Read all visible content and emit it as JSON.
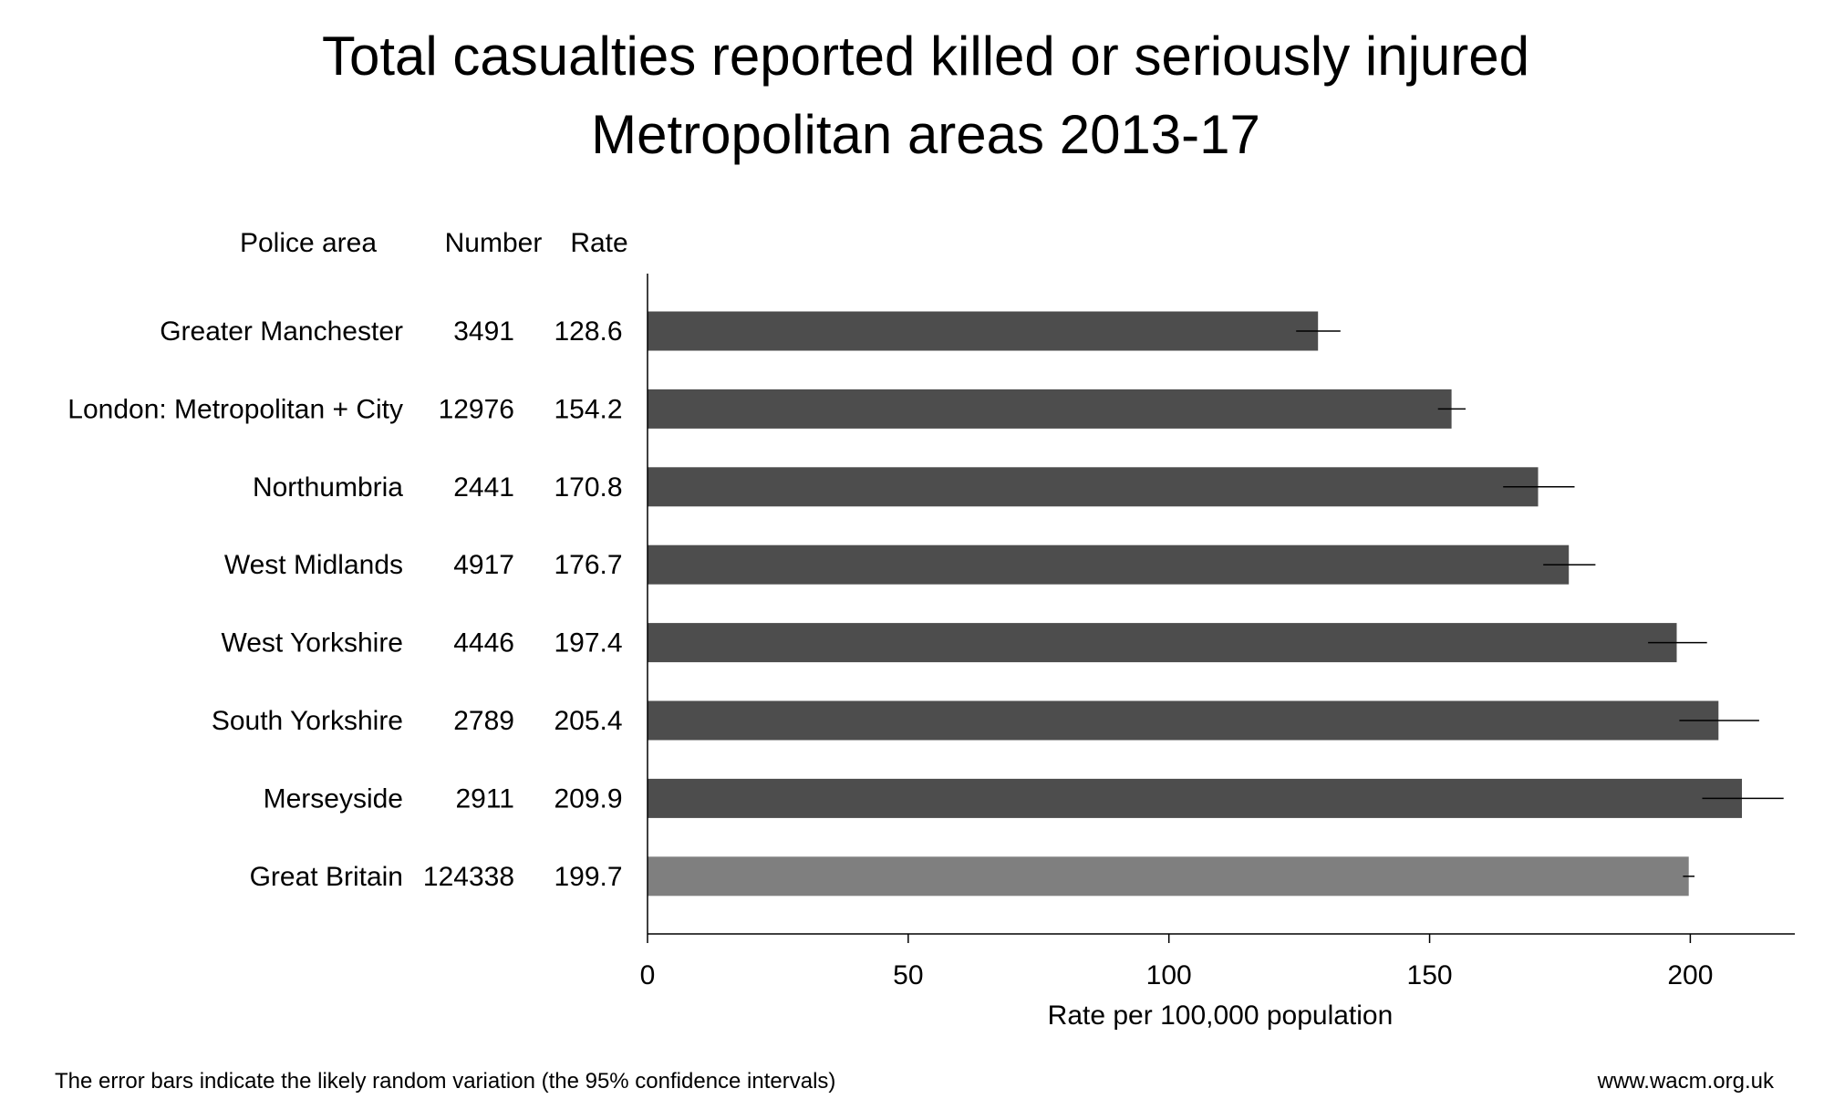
{
  "chart_data": {
    "type": "bar",
    "orientation": "horizontal",
    "title": [
      "Total casualties reported killed or seriously injured",
      "Metropolitan areas 2013-17"
    ],
    "column_headers": {
      "area": "Police area",
      "number": "Number",
      "rate": "Rate"
    },
    "categories": [
      "Greater Manchester",
      "London: Metropolitan + City",
      "Northumbria",
      "West Midlands",
      "West Yorkshire",
      "South Yorkshire",
      "Merseyside",
      "Great Britain"
    ],
    "numbers": [
      "3491",
      "12976",
      "2441",
      "4917",
      "4446",
      "2789",
      "2911",
      "124338"
    ],
    "rate_labels": [
      "128.6",
      "154.2",
      "170.8",
      "176.7",
      "197.4",
      "205.4",
      "209.9",
      "199.7"
    ],
    "values": [
      128.6,
      154.2,
      170.8,
      176.7,
      197.4,
      205.4,
      209.9,
      199.7
    ],
    "ci_low": [
      124.4,
      151.6,
      164.1,
      171.8,
      191.9,
      197.9,
      202.3,
      198.6
    ],
    "ci_high": [
      132.9,
      156.9,
      177.8,
      181.8,
      203.2,
      213.2,
      217.9,
      200.8
    ],
    "bar_colors": [
      "#4d4d4d",
      "#4d4d4d",
      "#4d4d4d",
      "#4d4d4d",
      "#4d4d4d",
      "#4d4d4d",
      "#4d4d4d",
      "#7f7f7f"
    ],
    "xlabel": "Rate per 100,000 population",
    "xlim": [
      0,
      220
    ],
    "xticks": [
      0,
      50,
      100,
      150,
      200
    ],
    "tick_labels": [
      "0",
      "50",
      "100",
      "150",
      "200"
    ],
    "grid": false,
    "footnote": "The error bars indicate the likely random variation (the 95% confidence intervals)",
    "source": "www.wacm.org.uk"
  }
}
